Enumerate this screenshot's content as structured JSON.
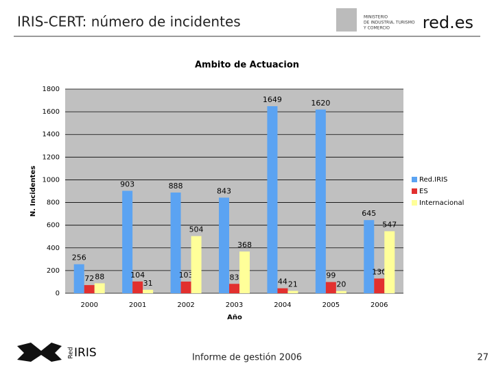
{
  "header": {
    "title": "IRIS-CERT: número de incidentes",
    "ministry": [
      "MINISTERIO",
      "DE INDUSTRIA, TURISMO",
      "Y COMERCIO"
    ],
    "brand": "red.es"
  },
  "chart_data": {
    "type": "bar",
    "title": "Ambito de Actuacion",
    "x_label": "Año",
    "y_label": "N. Incidentes",
    "categories": [
      "2000",
      "2001",
      "2002",
      "2003",
      "2004",
      "2005",
      "2006"
    ],
    "series": [
      {
        "name": "Red.IRIS",
        "color": "#5ba3f2",
        "values": [
          256,
          903,
          888,
          843,
          1649,
          1620,
          645
        ]
      },
      {
        "name": "ES",
        "color": "#e2302f",
        "values": [
          72,
          104,
          103,
          83,
          44,
          99,
          130
        ]
      },
      {
        "name": "Internacional",
        "color": "#ffff99",
        "values": [
          88,
          31,
          504,
          368,
          21,
          20,
          547
        ]
      }
    ],
    "ylim": [
      0,
      1800
    ],
    "yticks": [
      0,
      200,
      400,
      600,
      800,
      1000,
      1200,
      1400,
      1600,
      1800
    ],
    "grid": true,
    "legend": "right"
  },
  "footer": {
    "logo": [
      "Red",
      "IRIS"
    ],
    "text": "Informe de gestión 2006",
    "page": "27"
  }
}
